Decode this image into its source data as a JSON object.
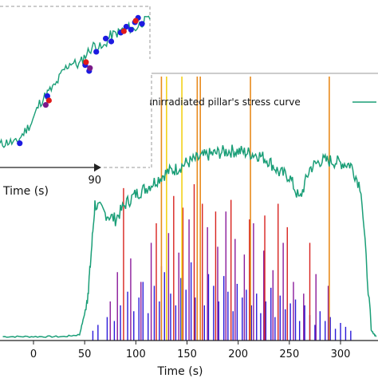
{
  "chart_data": [
    {
      "type": "line",
      "panel": "main",
      "xlabel": "Time (s)",
      "ylabel": "",
      "title": "",
      "xlim": [
        -30,
        335
      ],
      "ylim": [
        0,
        1
      ],
      "xticks": [
        0,
        50,
        100,
        150,
        200,
        250,
        300
      ],
      "legend": {
        "label": "One of the unirradiated pillar's stress curve",
        "placement": "top-right"
      },
      "colors": {
        "stress": "#1a9e77",
        "impulse_low": "#2a1ad8",
        "impulse_mid": "#8a1a9a",
        "impulse_high": "#d8221e",
        "impulse_top_orange": "#e88a1c",
        "impulse_top_yellow": "#f2d21a",
        "zoom_box": "#999999"
      },
      "stress_curve": {
        "name": "One of the unirradiated pillar's stress curve",
        "x": [
          -30,
          -10,
          10,
          30,
          45,
          52,
          55,
          60,
          70,
          80,
          90,
          100,
          110,
          120,
          130,
          140,
          150,
          160,
          170,
          180,
          190,
          200,
          210,
          220,
          230,
          240,
          250,
          260,
          270,
          280,
          290,
          300,
          310,
          320,
          330,
          335
        ],
        "y": [
          0.02,
          0.02,
          0.02,
          0.02,
          0.03,
          0.18,
          0.35,
          0.7,
          0.65,
          0.62,
          0.7,
          0.75,
          0.78,
          0.82,
          0.86,
          0.88,
          0.91,
          0.93,
          0.95,
          0.96,
          0.97,
          0.97,
          0.96,
          0.95,
          0.92,
          0.86,
          0.84,
          0.72,
          0.88,
          0.92,
          0.92,
          0.91,
          0.9,
          0.78,
          0.05,
          0.02
        ]
      },
      "impulses": {
        "low": {
          "x": [
            58,
            63,
            72,
            79,
            85,
            92,
            98,
            103,
            107,
            112,
            118,
            123,
            128,
            134,
            139,
            144,
            149,
            154,
            158,
            163,
            167,
            171,
            176,
            181,
            186,
            190,
            195,
            199,
            204,
            208,
            213,
            218,
            222,
            227,
            232,
            236,
            241,
            246,
            251,
            256,
            260,
            265,
            270,
            275,
            280,
            285,
            290,
            295,
            300,
            305,
            310
          ],
          "y": [
            0.05,
            0.08,
            0.12,
            0.1,
            0.18,
            0.25,
            0.15,
            0.22,
            0.3,
            0.14,
            0.28,
            0.2,
            0.35,
            0.24,
            0.18,
            0.32,
            0.26,
            0.4,
            0.22,
            0.3,
            0.18,
            0.34,
            0.28,
            0.2,
            0.33,
            0.25,
            0.15,
            0.29,
            0.22,
            0.26,
            0.18,
            0.24,
            0.14,
            0.2,
            0.27,
            0.12,
            0.23,
            0.16,
            0.19,
            0.21,
            0.1,
            0.18,
            0.13,
            0.08,
            0.15,
            0.1,
            0.12,
            0.06,
            0.09,
            0.07,
            0.05
          ]
        },
        "mid": {
          "x": [
            75,
            82,
            95,
            105,
            115,
            125,
            132,
            142,
            152,
            160,
            170,
            180,
            188,
            197,
            206,
            215,
            225,
            234,
            244,
            254,
            264,
            276,
            288
          ],
          "y": [
            0.2,
            0.35,
            0.42,
            0.3,
            0.5,
            0.38,
            0.55,
            0.45,
            0.62,
            0.4,
            0.58,
            0.48,
            0.66,
            0.52,
            0.44,
            0.6,
            0.46,
            0.36,
            0.5,
            0.3,
            0.24,
            0.34,
            0.28
          ]
        },
        "high": {
          "x": [
            88,
            120,
            137,
            146,
            157,
            165,
            178,
            193,
            211,
            226,
            239,
            248,
            270
          ],
          "y": [
            0.78,
            0.6,
            0.74,
            0.68,
            0.8,
            0.7,
            0.66,
            0.72,
            0.62,
            0.64,
            0.7,
            0.58,
            0.5
          ]
        },
        "top": {
          "x": [
            125,
            130,
            145,
            160,
            163,
            212,
            289
          ],
          "color": [
            "orange",
            "yellow",
            "yellow",
            "orange",
            "orange",
            "orange",
            "orange"
          ],
          "y": [
            1.2,
            1.2,
            1.2,
            1.2,
            1.2,
            1.2,
            1.2
          ]
        }
      }
    },
    {
      "type": "line",
      "panel": "inset",
      "xlabel": "Time (s)",
      "xticks": [
        90
      ],
      "xlim": [
        78,
        97
      ],
      "stress_curve": {
        "x": [
          78,
          79,
          80,
          81,
          82,
          83,
          84,
          85,
          86,
          87,
          88,
          89,
          90,
          91,
          92,
          93,
          94,
          95,
          96,
          97
        ],
        "y": [
          0.1,
          0.12,
          0.11,
          0.18,
          0.25,
          0.38,
          0.45,
          0.5,
          0.6,
          0.66,
          0.64,
          0.72,
          0.78,
          0.75,
          0.84,
          0.86,
          0.9,
          0.88,
          0.93,
          0.95
        ]
      },
      "events": {
        "blue": {
          "x": [
            80.5,
            84.0,
            88.8,
            89.3,
            90.2,
            91.4,
            92.1,
            93.3,
            94.0,
            94.6,
            95.1,
            95.5,
            96.0
          ],
          "y": [
            0.11,
            0.43,
            0.64,
            0.6,
            0.73,
            0.82,
            0.8,
            0.86,
            0.9,
            0.88,
            0.93,
            0.96,
            0.92
          ]
        },
        "red": {
          "x": [
            84.2,
            88.9,
            93.7,
            95.2
          ],
          "y": [
            0.4,
            0.66,
            0.87,
            0.94
          ]
        },
        "purple": {
          "x": [
            83.8,
            89.4
          ],
          "y": [
            0.37,
            0.62
          ]
        }
      }
    }
  ]
}
